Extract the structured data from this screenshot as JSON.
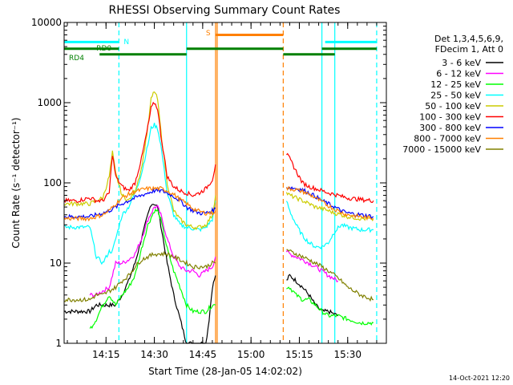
{
  "chart_data": {
    "type": "line",
    "title": "RHESSI Observing Summary Count Rates",
    "xlabel": "Start Time (28-Jan-05 14:02:02)",
    "ylabel": "Count Rate (s⁻¹ detector⁻¹)",
    "y_scale": "log",
    "ylim": [
      1,
      10000
    ],
    "xlim_minutes": [
      0,
      100
    ],
    "x_ticks": [
      {
        "label": "14:15",
        "minute": 13
      },
      {
        "label": "14:30",
        "minute": 28
      },
      {
        "label": "14:45",
        "minute": 43
      },
      {
        "label": "15:00",
        "minute": 58
      },
      {
        "label": "15:15",
        "minute": 73
      },
      {
        "label": "15:30",
        "minute": 88
      }
    ],
    "y_ticks": [
      {
        "label": "1",
        "value": 1
      },
      {
        "label": "10",
        "value": 10
      },
      {
        "label": "100",
        "value": 100
      },
      {
        "label": "1000",
        "value": 1000
      },
      {
        "label": "10000",
        "value": 10000
      }
    ],
    "legend_header": [
      "Det 1,3,4,5,6,9,",
      "FDecim 1, Att 0"
    ],
    "legend_position": "right",
    "series": [
      {
        "name": "3 - 6 keV",
        "color": "#000000",
        "x": [
          0,
          4,
          8,
          10,
          14,
          16,
          18,
          20,
          22,
          24,
          26,
          27,
          28,
          29,
          30,
          32,
          34,
          36,
          38,
          40,
          42,
          44,
          45,
          46,
          47
        ],
        "y": [
          2.5,
          2.5,
          2.5,
          3,
          3,
          3,
          4,
          6,
          10,
          20,
          40,
          55,
          55,
          50,
          30,
          10,
          4,
          2,
          1,
          1,
          1,
          1,
          2,
          5,
          7
        ],
        "segment2_x": [
          69,
          70,
          72,
          74,
          76,
          78,
          80,
          82,
          85
        ],
        "segment2_y": [
          6,
          7,
          6,
          5,
          4,
          3,
          2.5,
          2.5,
          2.2
        ]
      },
      {
        "name": "6 - 12 keV",
        "color": "#ff00ff",
        "x": [
          8,
          10,
          12,
          14,
          16,
          18,
          20,
          22,
          24,
          26,
          28,
          29,
          30,
          32,
          34,
          36,
          38,
          40,
          42,
          44,
          46,
          47
        ],
        "y": [
          4,
          4,
          4.5,
          5,
          10,
          10,
          11,
          13,
          20,
          35,
          50,
          50,
          40,
          20,
          12,
          9,
          8,
          8,
          7,
          8,
          9,
          12
        ],
        "segment2_x": [
          69,
          70,
          72,
          74,
          76,
          78,
          80,
          82,
          85
        ],
        "segment2_y": [
          14,
          13,
          12,
          11,
          10,
          9,
          8,
          7,
          6
        ]
      },
      {
        "name": "12 - 25 keV",
        "color": "#00ff00",
        "x": [
          8,
          10,
          12,
          14,
          16,
          18,
          20,
          22,
          24,
          26,
          28,
          29,
          30,
          32,
          34,
          36,
          38,
          40,
          42,
          44,
          46,
          47
        ],
        "y": [
          1.5,
          2,
          3,
          4,
          3,
          4,
          5,
          7,
          15,
          30,
          45,
          45,
          35,
          15,
          8,
          5,
          3,
          2.5,
          2.5,
          2.5,
          3,
          3
        ],
        "segment2_x": [
          69,
          70,
          72,
          74,
          76,
          78,
          80,
          82,
          85,
          88,
          92,
          96
        ],
        "segment2_y": [
          5,
          5,
          4,
          3.5,
          3.5,
          3,
          2.5,
          2.2,
          2.2,
          2,
          1.8,
          1.8
        ]
      },
      {
        "name": "25 - 50 keV",
        "color": "#00ffff",
        "x": [
          0,
          4,
          8,
          10,
          12,
          14,
          15,
          16,
          18,
          20,
          22,
          24,
          26,
          27,
          28,
          29,
          30,
          32,
          34,
          36,
          38,
          40,
          42,
          44,
          46,
          47
        ],
        "y": [
          28,
          28,
          28,
          12,
          10,
          14,
          14,
          20,
          40,
          50,
          75,
          130,
          300,
          480,
          530,
          480,
          300,
          75,
          40,
          30,
          28,
          27,
          26,
          28,
          35,
          60
        ],
        "segment2_x": [
          69,
          70,
          72,
          74,
          76,
          78,
          80,
          82,
          84,
          86,
          88,
          92,
          96
        ],
        "segment2_y": [
          60,
          45,
          30,
          22,
          18,
          16,
          16,
          18,
          25,
          30,
          28,
          26,
          26
        ]
      },
      {
        "name": "50 - 100 keV",
        "color": "#cccc00",
        "x": [
          0,
          4,
          8,
          10,
          12,
          14,
          15,
          16,
          18,
          20,
          22,
          24,
          26,
          27,
          28,
          29,
          30,
          32,
          34,
          36,
          38,
          40,
          42,
          44,
          46,
          47
        ],
        "y": [
          55,
          55,
          55,
          60,
          65,
          120,
          240,
          130,
          70,
          60,
          80,
          150,
          500,
          1100,
          1400,
          1100,
          450,
          100,
          45,
          35,
          30,
          28,
          28,
          30,
          40,
          70
        ],
        "segment2_x": [
          69,
          70,
          72,
          74,
          76,
          78,
          80,
          82,
          84,
          86,
          88,
          92,
          96
        ],
        "segment2_y": [
          75,
          70,
          65,
          60,
          55,
          50,
          48,
          45,
          42,
          40,
          38,
          36,
          35
        ]
      },
      {
        "name": "100 - 300 keV",
        "color": "#ff0000",
        "x": [
          0,
          4,
          8,
          10,
          12,
          14,
          15,
          16,
          18,
          20,
          22,
          24,
          26,
          27,
          28,
          29,
          30,
          32,
          34,
          36,
          38,
          40,
          42,
          44,
          46,
          47
        ],
        "y": [
          60,
          60,
          65,
          60,
          60,
          75,
          230,
          120,
          90,
          80,
          100,
          200,
          500,
          850,
          1000,
          850,
          400,
          120,
          90,
          80,
          75,
          70,
          75,
          85,
          110,
          170
        ],
        "segment2_x": [
          69,
          70,
          72,
          74,
          76,
          78,
          80,
          82,
          84,
          86,
          88,
          92,
          96
        ],
        "segment2_y": [
          230,
          200,
          140,
          100,
          90,
          85,
          80,
          75,
          72,
          68,
          65,
          62,
          60
        ]
      },
      {
        "name": "300 - 800 keV",
        "color": "#0000ff",
        "x": [
          0,
          4,
          8,
          10,
          12,
          14,
          16,
          18,
          20,
          22,
          24,
          26,
          28,
          30,
          32,
          34,
          36,
          38,
          40,
          42,
          44,
          46,
          47
        ],
        "y": [
          38,
          38,
          38,
          40,
          42,
          45,
          50,
          55,
          60,
          65,
          70,
          75,
          80,
          80,
          75,
          68,
          60,
          50,
          45,
          42,
          42,
          45,
          48
        ],
        "segment2_x": [
          69,
          70,
          72,
          74,
          76,
          78,
          80,
          82,
          84,
          86,
          88,
          92,
          96
        ],
        "segment2_y": [
          88,
          88,
          85,
          82,
          75,
          68,
          60,
          55,
          50,
          45,
          42,
          40,
          38
        ]
      },
      {
        "name": "800 - 7000 keV",
        "color": "#ff8000",
        "x": [
          0,
          4,
          8,
          10,
          12,
          14,
          16,
          18,
          20,
          22,
          24,
          26,
          28,
          30,
          32,
          34,
          36,
          38,
          40,
          42,
          44,
          46,
          47
        ],
        "y": [
          36,
          36,
          36,
          38,
          40,
          45,
          55,
          65,
          72,
          78,
          82,
          85,
          85,
          85,
          80,
          72,
          62,
          55,
          48,
          44,
          42,
          42,
          45
        ],
        "segment2_x": [
          69,
          70,
          72,
          74,
          76,
          78,
          80,
          82,
          84,
          86,
          88,
          92,
          96
        ],
        "segment2_y": [
          85,
          85,
          82,
          78,
          72,
          65,
          58,
          52,
          47,
          43,
          40,
          38,
          36
        ]
      },
      {
        "name": "7000 - 15000 keV",
        "color": "#808000",
        "x": [
          0,
          4,
          8,
          10,
          12,
          14,
          16,
          18,
          20,
          22,
          24,
          26,
          28,
          30,
          32,
          34,
          36,
          38,
          40,
          42,
          44,
          46,
          47
        ],
        "y": [
          3.5,
          3.5,
          3.5,
          4,
          4,
          4.5,
          5,
          6,
          7,
          9,
          11,
          12,
          13,
          13,
          13,
          12,
          11,
          10,
          9,
          9,
          9,
          10,
          10
        ],
        "segment2_x": [
          69,
          70,
          72,
          74,
          76,
          78,
          80,
          82,
          84,
          86,
          88,
          92,
          96
        ],
        "segment2_y": [
          15,
          14,
          13,
          12,
          11,
          10,
          9,
          8,
          7,
          6,
          5,
          4,
          3.5
        ]
      }
    ],
    "annotations": [
      {
        "label": "N",
        "color": "#00ffff"
      },
      {
        "label": "RD0",
        "color": "#008000"
      },
      {
        "label": "RD4",
        "color": "#008000"
      },
      {
        "label": "S",
        "color": "#ff8000"
      }
    ],
    "attenuator_bars": [
      {
        "name": "RD0",
        "segments": [
          [
            0,
            17
          ],
          [
            38,
            68
          ],
          [
            80,
            97
          ]
        ],
        "level": 4700
      },
      {
        "name": "RD4",
        "segments": [
          [
            11,
            38
          ],
          [
            68,
            84
          ]
        ],
        "level": 4000
      },
      {
        "name": "N",
        "segments": [
          [
            0,
            17
          ],
          [
            81,
            97
          ]
        ],
        "level": 5700
      },
      {
        "name": "S",
        "segments": [
          [
            47,
            68
          ]
        ],
        "level": 7000
      }
    ],
    "vertical_markers": [
      {
        "minute": 17,
        "color": "#00ffff",
        "style": "dashed"
      },
      {
        "minute": 38,
        "color": "#00ffff",
        "style": "solid"
      },
      {
        "minute": 47,
        "color": "#ff8000",
        "style": "solid"
      },
      {
        "minute": 47.5,
        "color": "#ff8000",
        "style": "solid"
      },
      {
        "minute": 68,
        "color": "#ff8000",
        "style": "dashed"
      },
      {
        "minute": 80,
        "color": "#00ffff",
        "style": "solid"
      },
      {
        "minute": 84,
        "color": "#00ffff",
        "style": "solid"
      },
      {
        "minute": 97,
        "color": "#00ffff",
        "style": "dashed"
      }
    ]
  },
  "footer": {
    "timestamp": "14-Oct-2021 12:20"
  }
}
